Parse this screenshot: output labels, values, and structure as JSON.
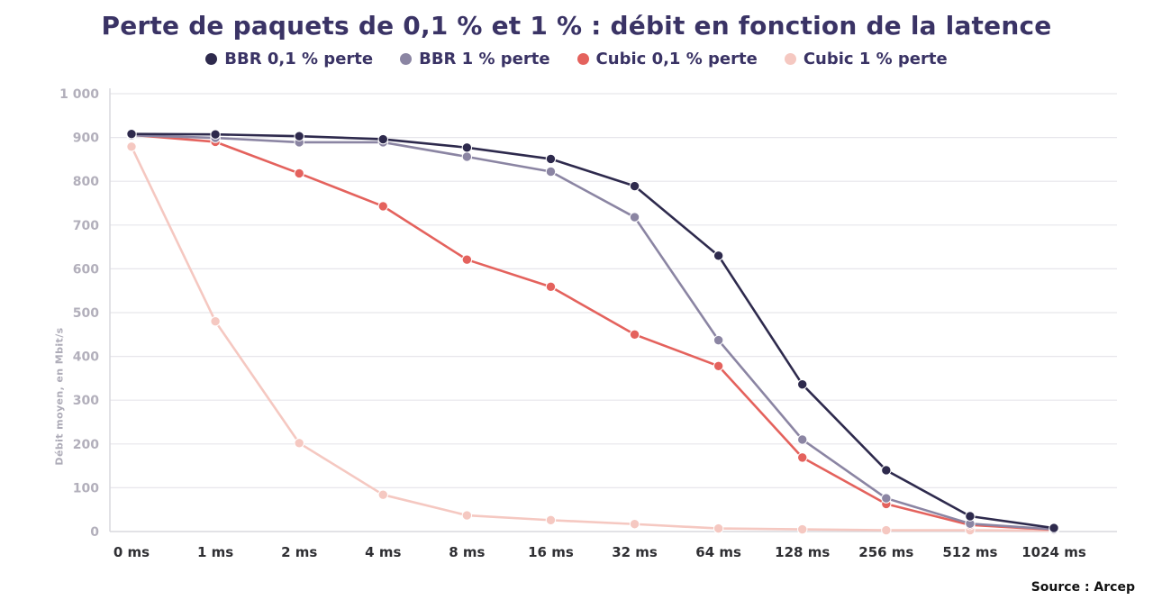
{
  "title": "Perte de paquets de 0,1 % et 1 % : débit en fonction de la latence",
  "source": "Source : Arcep",
  "colors": {
    "title_text": "#3a3365",
    "grid": "#e7e6eb",
    "axis_line": "#d9d8de",
    "y_tick_text": "#b2afbb",
    "x_tick_text": "#2f2f33"
  },
  "chart_data": {
    "type": "line",
    "title": "Perte de paquets de 0,1 % et 1 % : débit en fonction de la latence",
    "xlabel": "",
    "ylabel": "Débit moyen, en Mbit/s",
    "ylim": [
      0,
      1000
    ],
    "ytick_step": 100,
    "ytick_labels": [
      "0",
      "100",
      "200",
      "300",
      "400",
      "500",
      "600",
      "700",
      "800",
      "900",
      "1 000"
    ],
    "grid": true,
    "legend_position": "top",
    "categories": [
      "0 ms",
      "1 ms",
      "2 ms",
      "4 ms",
      "8 ms",
      "16 ms",
      "32 ms",
      "64 ms",
      "128 ms",
      "256 ms",
      "512 ms",
      "1024 ms"
    ],
    "series": [
      {
        "name": "BBR 0,1 % perte",
        "color": "#2e2a4d",
        "values": [
          908,
          907,
          903,
          896,
          877,
          851,
          789,
          630,
          336,
          140,
          35,
          8
        ]
      },
      {
        "name": "BBR 1 % perte",
        "color": "#8b85a3",
        "values": [
          905,
          899,
          889,
          889,
          856,
          822,
          718,
          437,
          210,
          76,
          18,
          5
        ]
      },
      {
        "name": "Cubic 0,1 % perte",
        "color": "#e4625d",
        "values": [
          906,
          890,
          818,
          743,
          621,
          559,
          450,
          378,
          169,
          63,
          15,
          4
        ]
      },
      {
        "name": "Cubic 1 % perte",
        "color": "#f5c8c1",
        "values": [
          879,
          480,
          202,
          84,
          37,
          26,
          17,
          7,
          5,
          3,
          3,
          2
        ]
      }
    ]
  }
}
